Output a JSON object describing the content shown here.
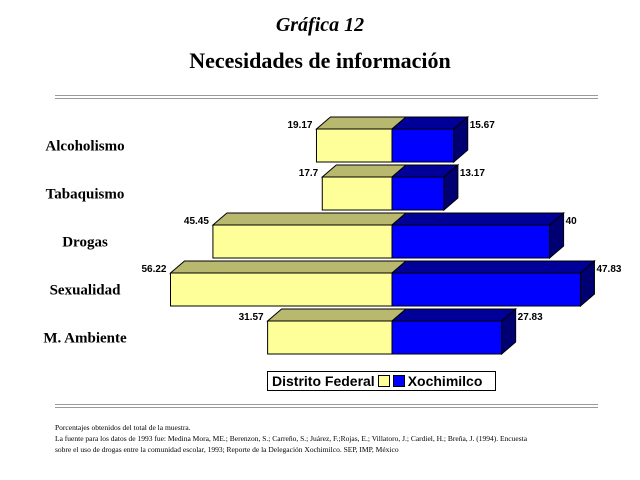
{
  "header": {
    "supertitle": "Gráfica 12",
    "title": "Necesidades de información"
  },
  "chart_data": {
    "type": "bar",
    "orientation": "horizontal",
    "stacked": true,
    "style": "3d",
    "categories": [
      "Alcoholismo",
      "Tabaquismo",
      "Drogas",
      "Sexualidad",
      "M. Ambiente"
    ],
    "series": [
      {
        "name": "Distrito Federal",
        "color": "#ffff99",
        "values": [
          19.17,
          17.7,
          45.45,
          56.22,
          31.57
        ]
      },
      {
        "name": "Xochimilco",
        "color": "#0000ff",
        "values": [
          15.67,
          13.17,
          40,
          47.83,
          27.83
        ]
      }
    ],
    "value_labels": [
      [
        "19.17",
        "17.7",
        "45.45",
        "56.22",
        "31.57"
      ],
      [
        "15.67",
        "13.17",
        "40",
        "47.83",
        "27.83"
      ]
    ],
    "legend_position": "bottom",
    "grid": false
  },
  "footnotes": [
    "Porcentajes obtenidos del total de la muestra.",
    "La fuente para los datos de 1993 fue: Medina Mora, ME.; Berenzon, S.; Carreño, S.; Juárez, F.;Rojas, E.; Villatoro, J.; Cardiel, H.; Breña, J. (1994). Encuesta",
    "sobre el uso de drogas entre la comunidad escolar, 1993; Reporte de la Delegación Xochimilco. SEP, IMP, México"
  ]
}
